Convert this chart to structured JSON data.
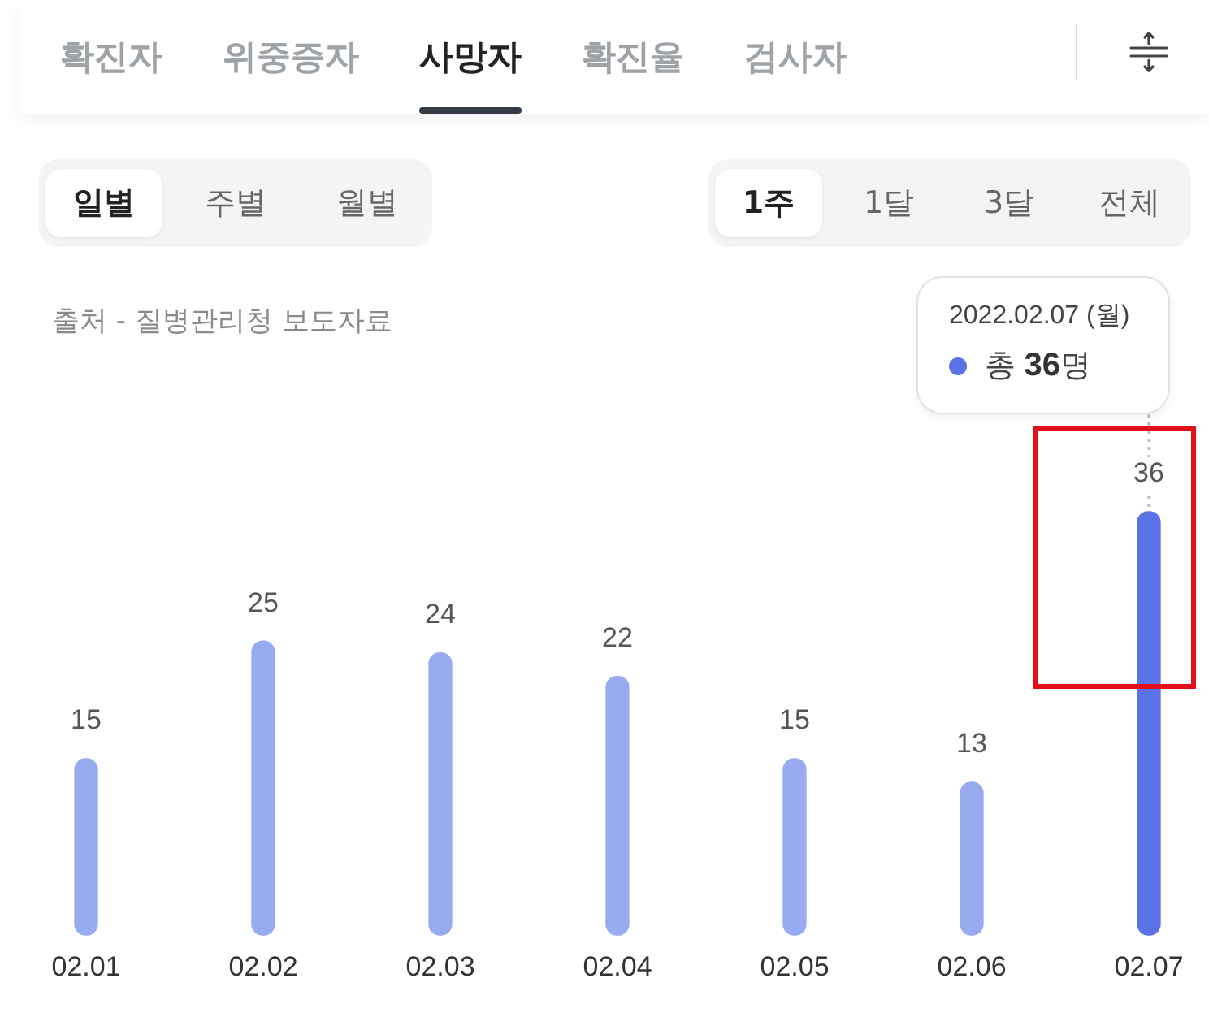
{
  "chart_data": {
    "type": "bar",
    "title": "사망자",
    "categories": [
      "02.01",
      "02.02",
      "02.03",
      "02.04",
      "02.05",
      "02.06",
      "02.07"
    ],
    "values": [
      15,
      25,
      24,
      22,
      15,
      13,
      36
    ],
    "colors": [
      "#98aaf0",
      "#98aaf0",
      "#98aaf0",
      "#98aaf0",
      "#98aaf0",
      "#98aaf0",
      "#5a72e6"
    ],
    "data_labels": true,
    "annotations": [
      "확진자",
      "위중증자",
      "확진율",
      "검사자",
      "일별",
      "주별",
      "월별",
      "1주",
      "1달",
      "3달",
      "전체",
      "출처 - 질병관리청 보도자료",
      "2022.02.07 (월)",
      "총 36명"
    ]
  }
}
